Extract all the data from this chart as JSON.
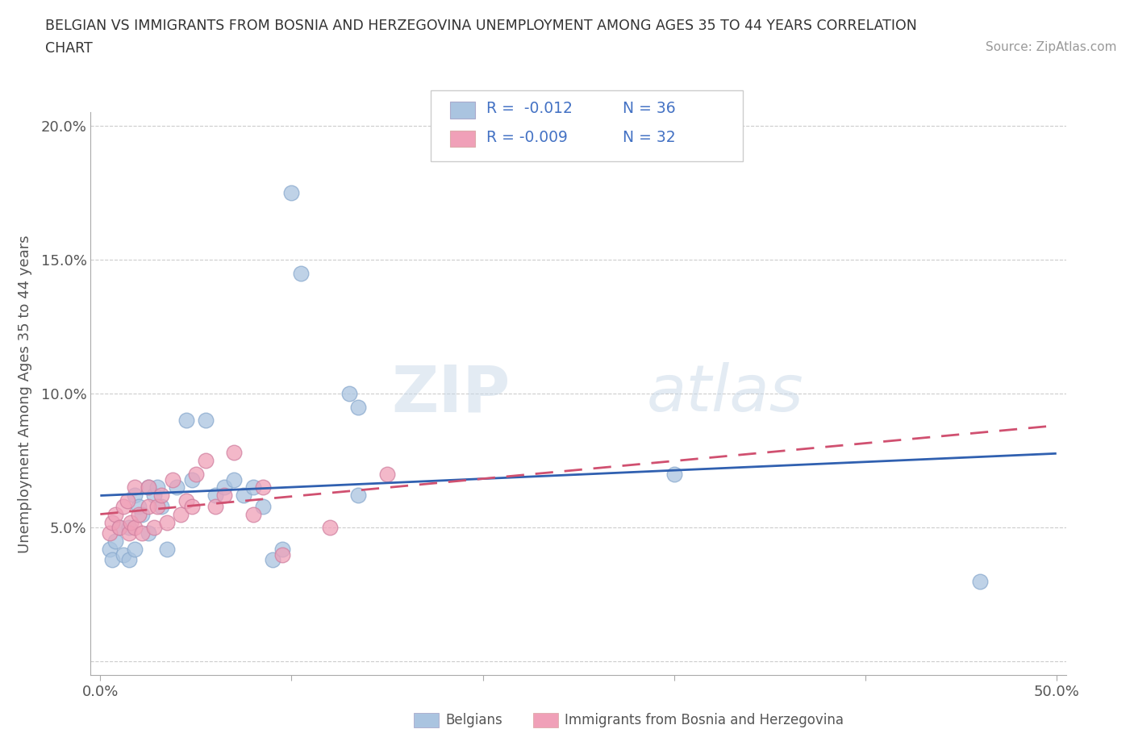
{
  "title_line1": "BELGIAN VS IMMIGRANTS FROM BOSNIA AND HERZEGOVINA UNEMPLOYMENT AMONG AGES 35 TO 44 YEARS CORRELATION",
  "title_line2": "CHART",
  "source_text": "Source: ZipAtlas.com",
  "ylabel": "Unemployment Among Ages 35 to 44 years",
  "xlim": [
    -0.005,
    0.505
  ],
  "ylim": [
    -0.005,
    0.205
  ],
  "xticks": [
    0.0,
    0.1,
    0.2,
    0.3,
    0.4,
    0.5
  ],
  "xticklabels": [
    "0.0%",
    "",
    "",
    "",
    "",
    "50.0%"
  ],
  "yticks": [
    0.0,
    0.05,
    0.1,
    0.15,
    0.2
  ],
  "yticklabels": [
    "",
    "5.0%",
    "10.0%",
    "15.0%",
    "20.0%"
  ],
  "belgian_color": "#aac4e0",
  "immigrant_color": "#f0a0b8",
  "trend_belgian_color": "#3060b0",
  "trend_immigrant_color": "#d05070",
  "background_color": "#ffffff",
  "grid_color": "#cccccc",
  "legend_r_belgian": "R =  -0.012",
  "legend_n_belgian": "N = 36",
  "legend_r_immigrant": "R = -0.009",
  "legend_n_immigrant": "N = 32",
  "belgian_x": [
    0.005,
    0.006,
    0.008,
    0.01,
    0.012,
    0.015,
    0.015,
    0.018,
    0.018,
    0.02,
    0.022,
    0.025,
    0.025,
    0.028,
    0.03,
    0.032,
    0.035,
    0.04,
    0.045,
    0.048,
    0.055,
    0.06,
    0.065,
    0.07,
    0.075,
    0.08,
    0.085,
    0.09,
    0.095,
    0.1,
    0.105,
    0.13,
    0.135,
    0.135,
    0.3,
    0.46
  ],
  "belgian_y": [
    0.042,
    0.038,
    0.045,
    0.05,
    0.04,
    0.038,
    0.05,
    0.042,
    0.062,
    0.058,
    0.055,
    0.048,
    0.065,
    0.062,
    0.065,
    0.058,
    0.042,
    0.065,
    0.09,
    0.068,
    0.09,
    0.062,
    0.065,
    0.068,
    0.062,
    0.065,
    0.058,
    0.038,
    0.042,
    0.175,
    0.145,
    0.1,
    0.095,
    0.062,
    0.07,
    0.03
  ],
  "immigrant_x": [
    0.005,
    0.006,
    0.008,
    0.01,
    0.012,
    0.014,
    0.015,
    0.016,
    0.018,
    0.018,
    0.02,
    0.022,
    0.025,
    0.025,
    0.028,
    0.03,
    0.032,
    0.035,
    0.038,
    0.042,
    0.045,
    0.048,
    0.05,
    0.055,
    0.06,
    0.065,
    0.07,
    0.08,
    0.085,
    0.095,
    0.12,
    0.15
  ],
  "immigrant_y": [
    0.048,
    0.052,
    0.055,
    0.05,
    0.058,
    0.06,
    0.048,
    0.052,
    0.05,
    0.065,
    0.055,
    0.048,
    0.058,
    0.065,
    0.05,
    0.058,
    0.062,
    0.052,
    0.068,
    0.055,
    0.06,
    0.058,
    0.07,
    0.075,
    0.058,
    0.062,
    0.078,
    0.055,
    0.065,
    0.04,
    0.05,
    0.07
  ],
  "watermark_zip": "ZIP",
  "watermark_atlas": "atlas",
  "legend_box_color_belgian": "#aac4e0",
  "legend_box_color_immigrant": "#f0a0b8"
}
